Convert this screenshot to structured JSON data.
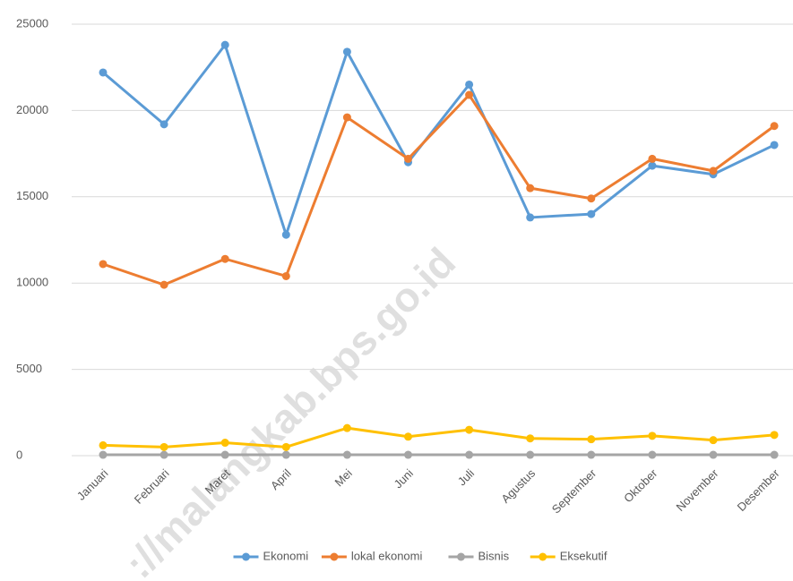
{
  "chart_data": {
    "type": "line",
    "watermark": "://malangkab.bps.go.id",
    "categories": [
      "Januari",
      "Februari",
      "Maret",
      "April",
      "Mei",
      "Juni",
      "Juli",
      "Agustus",
      "September",
      "Oktober",
      "November",
      "Desember"
    ],
    "series": [
      {
        "name": "Ekonomi",
        "color": "#5b9bd5",
        "values": [
          22200,
          19200,
          23800,
          12800,
          23400,
          17000,
          21500,
          13800,
          14000,
          16800,
          16300,
          18000
        ]
      },
      {
        "name": "lokal ekonomi",
        "color": "#ed7d31",
        "values": [
          11100,
          9900,
          11400,
          10400,
          19600,
          17200,
          20900,
          15500,
          14900,
          17200,
          16500,
          19100
        ]
      },
      {
        "name": "Bisnis",
        "color": "#a5a5a5",
        "values": [
          50,
          50,
          50,
          50,
          50,
          50,
          50,
          50,
          50,
          50,
          50,
          50
        ]
      },
      {
        "name": "Eksekutif",
        "color": "#ffc000",
        "values": [
          600,
          500,
          750,
          500,
          1600,
          1100,
          1500,
          1000,
          950,
          1150,
          900,
          1200
        ]
      }
    ],
    "ylim": [
      0,
      25000
    ],
    "yticks": [
      0,
      5000,
      10000,
      15000,
      20000,
      25000
    ],
    "grid": true,
    "legend": "bottom"
  }
}
